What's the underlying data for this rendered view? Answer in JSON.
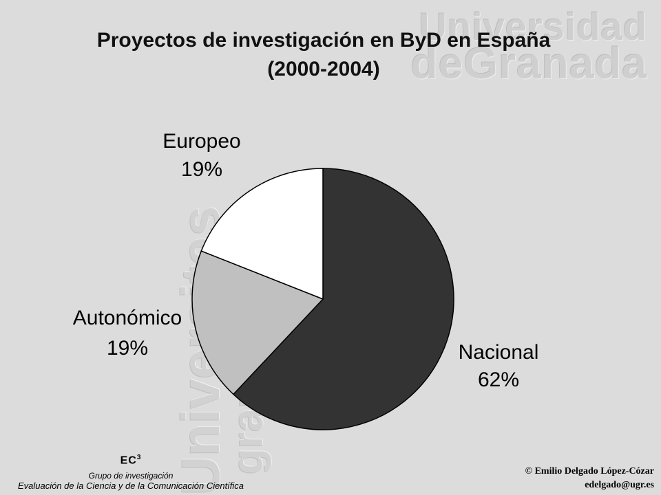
{
  "title": {
    "line1": "Proyectos de investigación en ByD en España",
    "line2": "(2000-2004)"
  },
  "watermark": {
    "top_line1": "Universidad",
    "top_line2": "deGranada",
    "side_line1": "Universitas",
    "side_line2": "granatensis"
  },
  "chart_data": {
    "type": "pie",
    "title": "Proyectos de investigación en ByD en España (2000-2004)",
    "start_angle_deg": 0,
    "slices": [
      {
        "label": "Nacional",
        "value": 62,
        "value_label": "62%",
        "color": "#333333"
      },
      {
        "label": "Autonómico",
        "value": 19,
        "value_label": "19%",
        "color": "#c0c0c0"
      },
      {
        "label": "Europeo",
        "value": 19,
        "value_label": "19%",
        "color": "#ffffff"
      }
    ]
  },
  "logo": {
    "mark": "EC",
    "mark_sup": "3",
    "line1": "Grupo de investigación",
    "line2": "Evaluación de la Ciencia y de la Comunicación Científica"
  },
  "credit": {
    "author": "© Emilio Delgado López-Cózar",
    "email": "edelgado@ugr.es"
  }
}
